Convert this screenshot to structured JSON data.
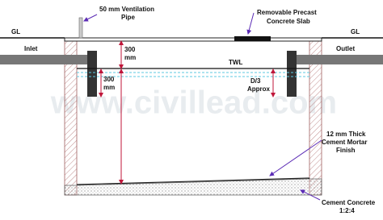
{
  "watermark": "www.civillead.com",
  "ground_level": [
    "GL",
    "GL"
  ],
  "ventilation_pipe": [
    "50 mm Ventilation",
    "Pipe"
  ],
  "precast_slab": [
    "Removable Precast",
    "Concrete Slab"
  ],
  "inlet": "Inlet",
  "outlet": "Outlet",
  "twl": "TWL",
  "top_gap": [
    "300",
    "mm"
  ],
  "inlet_depth": [
    "300",
    "mm"
  ],
  "outlet_depth": [
    "D/3",
    "Approx"
  ],
  "mortar_finish": [
    "12 mm Thick",
    "Cement Mortar",
    "Finish"
  ],
  "base_concrete": [
    "Cement Concrete",
    "1:2:4"
  ]
}
